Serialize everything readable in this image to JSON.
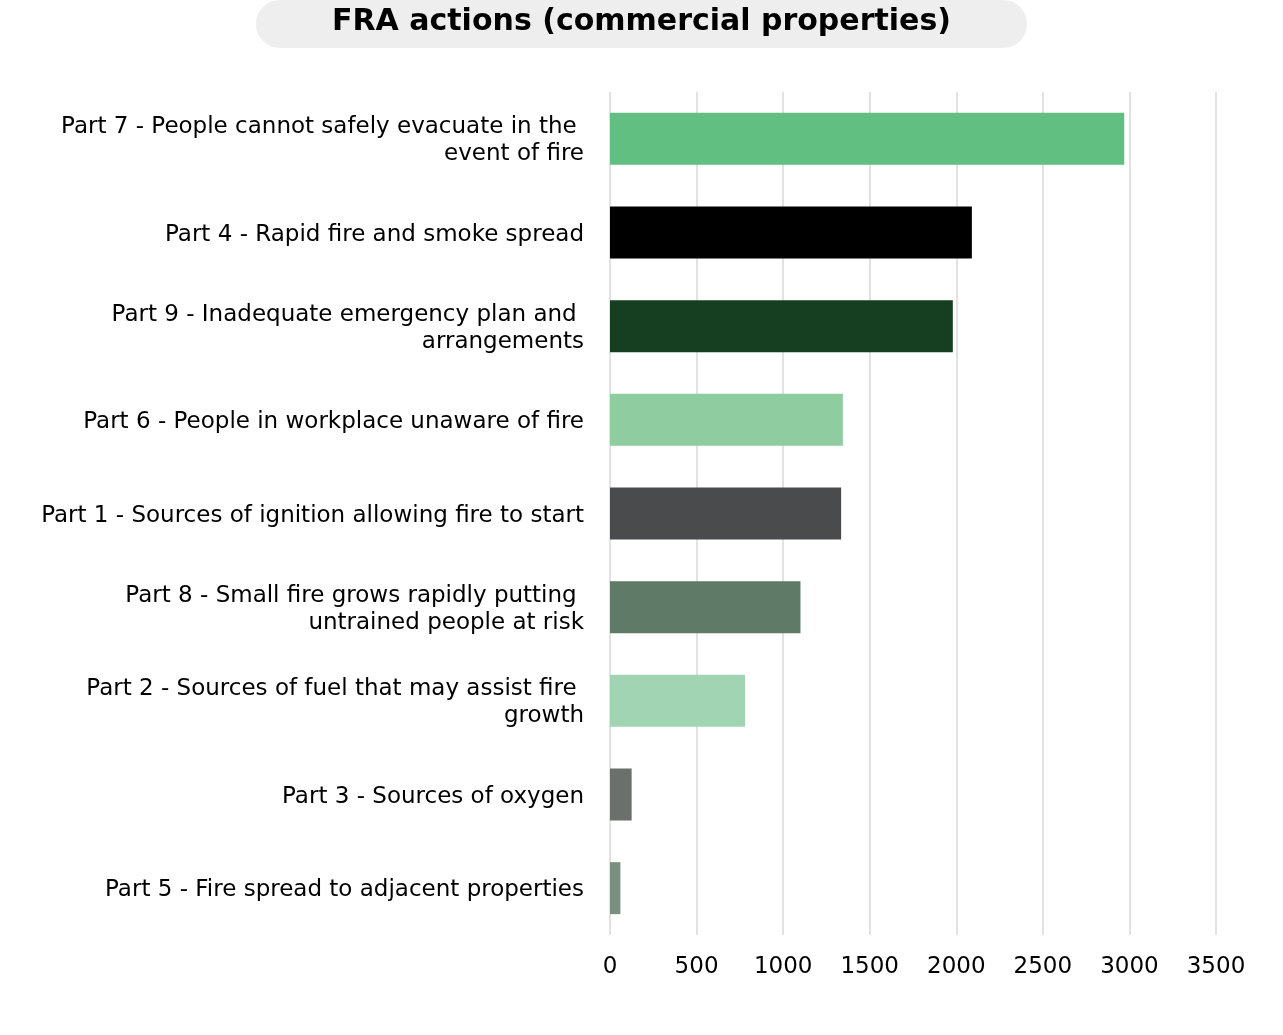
{
  "chart_data": {
    "type": "bar",
    "orientation": "horizontal",
    "title": "FRA actions (commercial properties)",
    "categories": [
      "Part 7 - People cannot safely evacuate in the event of fire",
      "Part 4 - Rapid fire and smoke spread",
      "Part 9 - Inadequate emergency plan and arrangements",
      "Part 6 - People in workplace unaware of fire",
      "Part 1 - Sources of ignition allowing fire to start",
      "Part 8 - Small fire grows rapidly putting untrained people at risk",
      "Part 2 - Sources of fuel that may assist fire growth",
      "Part 3 - Sources of oxygen",
      "Part 5 - Fire spread to adjacent properties"
    ],
    "values": [
      2970,
      2090,
      1980,
      1345,
      1335,
      1100,
      780,
      125,
      60
    ],
    "colors": [
      "#61bf81",
      "#000000",
      "#163f22",
      "#8fcca0",
      "#4a4b4d",
      "#5f7a67",
      "#a1d4b2",
      "#6b706d",
      "#7a8f80"
    ],
    "xlim": [
      0,
      3500
    ],
    "xticks": [
      0,
      500,
      1000,
      1500,
      2000,
      2500,
      3000,
      3500
    ],
    "grid": "x"
  }
}
